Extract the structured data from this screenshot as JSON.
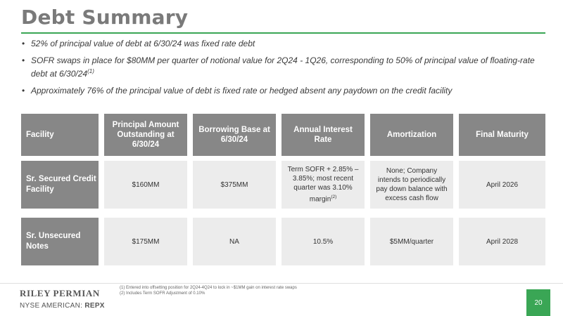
{
  "title": "Debt Summary",
  "bullets": [
    {
      "text": "52% of principal value of debt at 6/30/24 was fixed rate debt",
      "sup": ""
    },
    {
      "text": "SOFR swaps in place for $80MM per quarter of notional value for 2Q24 - 1Q26, corresponding to 50% of principal value of floating-rate debt at 6/30/24",
      "sup": "(1)"
    },
    {
      "text": "Approximately 76% of the principal value of debt is fixed rate or hedged absent any paydown on the credit facility",
      "sup": ""
    }
  ],
  "table": {
    "headers": [
      "Facility",
      "Principal Amount Outstanding at 6/30/24",
      "Borrowing Base at 6/30/24",
      "Annual Interest Rate",
      "Amortization",
      "Final Maturity"
    ],
    "rows": [
      {
        "facility": "Sr. Secured Credit Facility",
        "principal": "$160MM",
        "borrowing_base": "$375MM",
        "rate": "Term SOFR + 2.85% – 3.85%; most recent quarter was 3.10% margin",
        "rate_sup": "(2)",
        "amortization": "None; Company intends to periodically pay down balance with excess cash flow",
        "maturity": "April 2026"
      },
      {
        "facility": "Sr. Unsecured Notes",
        "principal": "$175MM",
        "borrowing_base": "NA",
        "rate": "10.5%",
        "rate_sup": "",
        "amortization": "$5MM/quarter",
        "maturity": "April 2028"
      }
    ]
  },
  "footnotes": [
    "(1) Entered into offsetting position for 2Q24-4Q24 to lock in ~$1MM gain on interest rate swaps",
    "(2) Includes Term SOFR Adjustment of 0.10%"
  ],
  "logo": {
    "name": "RILEY PERMIAN",
    "exchange": "NYSE AMERICAN:",
    "ticker": "REPX"
  },
  "page_number": "20",
  "colors": {
    "accent": "#3aa655",
    "header_bg": "#878787",
    "cell_bg": "#ececec"
  }
}
